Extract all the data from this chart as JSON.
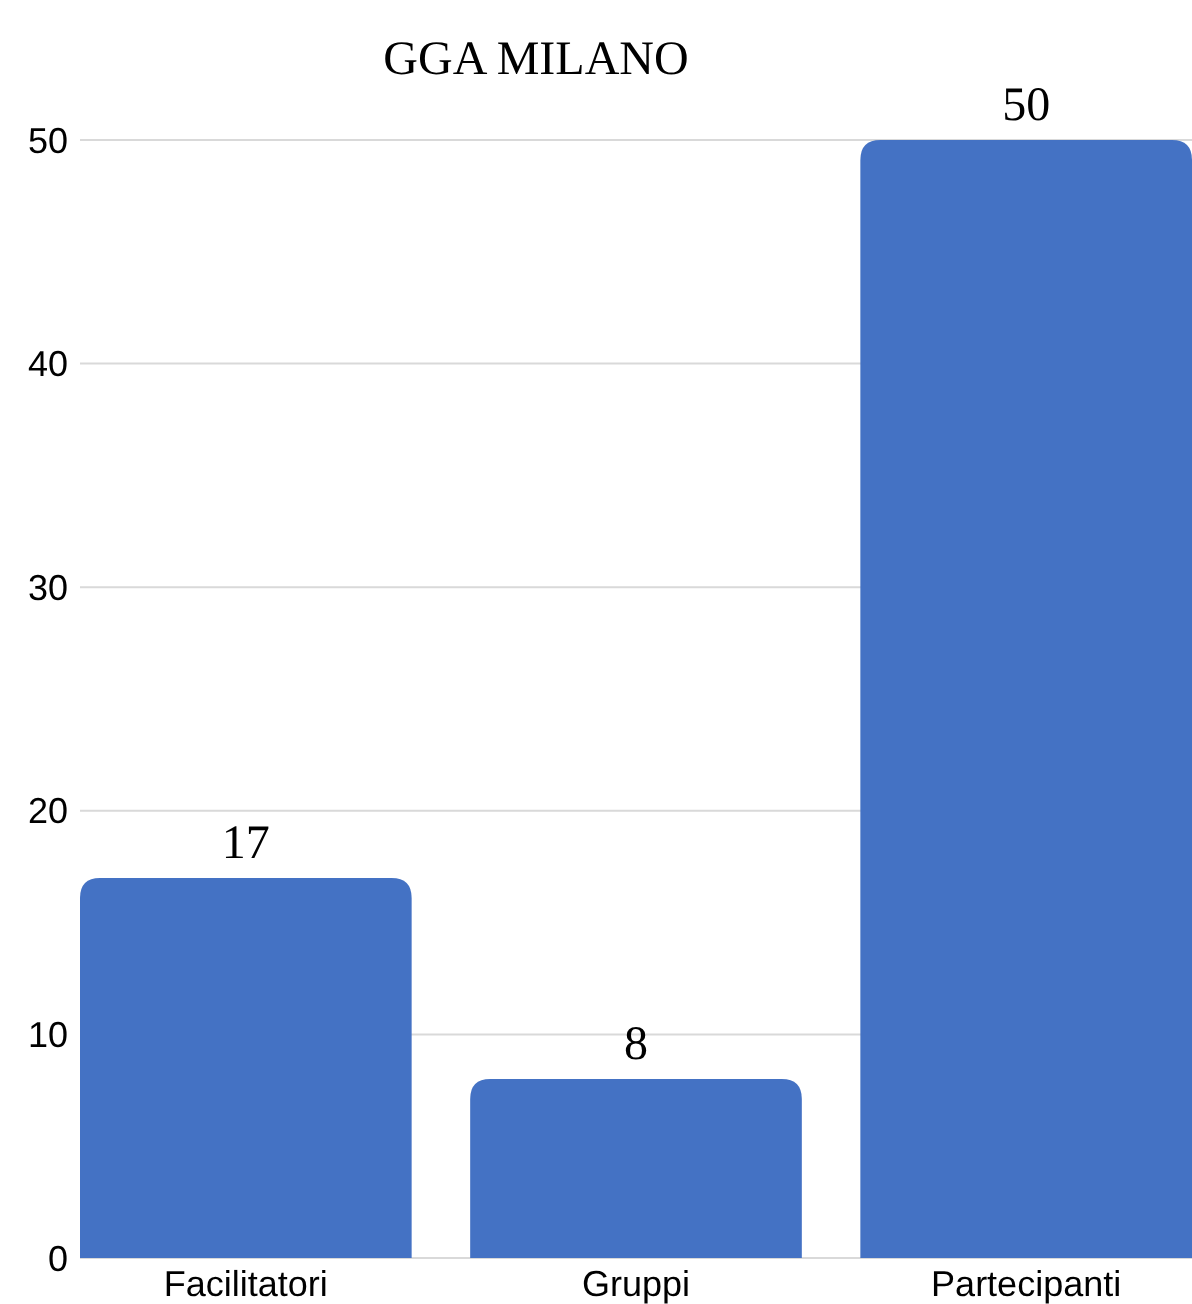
{
  "chart_data": {
    "type": "bar",
    "title": "GGA MILANO",
    "categories": [
      "Facilitatori",
      "Gruppi",
      "Partecipanti"
    ],
    "values": [
      17,
      8,
      50
    ],
    "color": "#4472c4",
    "ylim": [
      0,
      50
    ],
    "yticks": [
      0,
      10,
      20,
      30,
      40,
      50
    ],
    "grid": "y",
    "data_labels": true
  }
}
